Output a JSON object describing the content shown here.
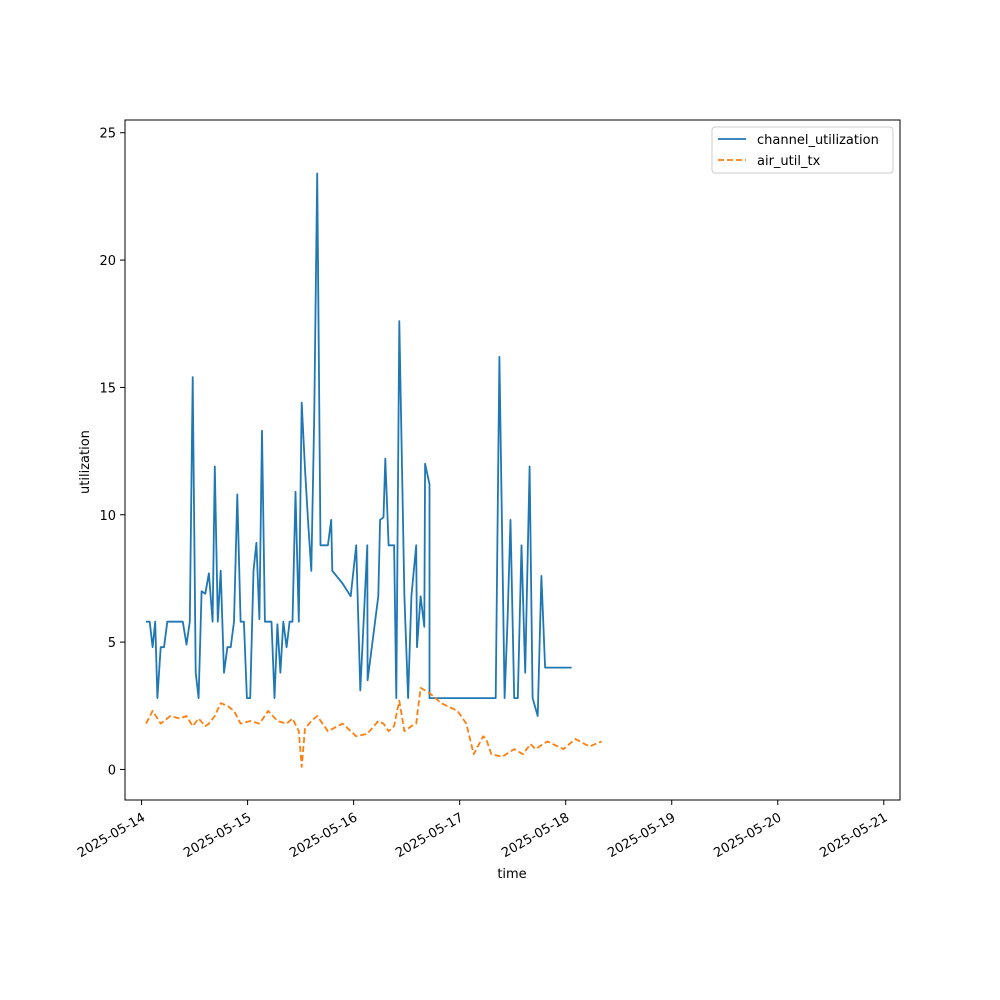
{
  "chart_data": {
    "type": "line",
    "title": "",
    "xlabel": "time",
    "ylabel": "utilization",
    "x_axis_kind": "datetime",
    "xlim": [
      "2025-05-13 20:15",
      "2025-05-21 03:40"
    ],
    "ylim": [
      -1.2,
      25.5
    ],
    "x_tick_labels": [
      "2025-05-14",
      "2025-05-15",
      "2025-05-16",
      "2025-05-17",
      "2025-05-18",
      "2025-05-19",
      "2025-05-20",
      "2025-05-21"
    ],
    "y_ticks": [
      0,
      5,
      10,
      15,
      20,
      25
    ],
    "grid": false,
    "legend_position": "top-right",
    "series": [
      {
        "name": "channel_utilization",
        "color": "#1f77b4",
        "line_style": "solid",
        "points": [
          [
            "2025-05-14 01:00",
            5.8
          ],
          [
            "2025-05-14 01:50",
            5.8
          ],
          [
            "2025-05-14 02:30",
            4.8
          ],
          [
            "2025-05-14 03:05",
            5.8
          ],
          [
            "2025-05-14 03:35",
            2.8
          ],
          [
            "2025-05-14 04:20",
            4.8
          ],
          [
            "2025-05-14 05:05",
            4.8
          ],
          [
            "2025-05-14 05:50",
            5.8
          ],
          [
            "2025-05-14 07:10",
            5.8
          ],
          [
            "2025-05-14 09:20",
            5.8
          ],
          [
            "2025-05-14 10:10",
            4.9
          ],
          [
            "2025-05-14 10:55",
            5.8
          ],
          [
            "2025-05-14 11:35",
            15.4
          ],
          [
            "2025-05-14 12:15",
            3.8
          ],
          [
            "2025-05-14 12:55",
            2.8
          ],
          [
            "2025-05-14 13:35",
            7.0
          ],
          [
            "2025-05-14 14:25",
            6.9
          ],
          [
            "2025-05-14 15:15",
            7.7
          ],
          [
            "2025-05-14 16:05",
            5.8
          ],
          [
            "2025-05-14 16:35",
            11.9
          ],
          [
            "2025-05-14 17:15",
            5.8
          ],
          [
            "2025-05-14 17:55",
            7.8
          ],
          [
            "2025-05-14 18:40",
            3.8
          ],
          [
            "2025-05-14 19:25",
            4.8
          ],
          [
            "2025-05-14 20:10",
            4.8
          ],
          [
            "2025-05-14 20:55",
            5.8
          ],
          [
            "2025-05-14 21:40",
            10.8
          ],
          [
            "2025-05-14 22:25",
            5.8
          ],
          [
            "2025-05-14 23:10",
            5.8
          ],
          [
            "2025-05-14 23:50",
            2.8
          ],
          [
            "2025-05-15 00:35",
            2.8
          ],
          [
            "2025-05-15 01:20",
            7.8
          ],
          [
            "2025-05-15 02:00",
            8.9
          ],
          [
            "2025-05-15 02:40",
            5.9
          ],
          [
            "2025-05-15 03:15",
            13.3
          ],
          [
            "2025-05-15 03:55",
            5.8
          ],
          [
            "2025-05-15 04:40",
            5.8
          ],
          [
            "2025-05-15 05:25",
            5.8
          ],
          [
            "2025-05-15 06:05",
            2.8
          ],
          [
            "2025-05-15 06:45",
            5.7
          ],
          [
            "2025-05-15 07:25",
            3.8
          ],
          [
            "2025-05-15 08:05",
            5.8
          ],
          [
            "2025-05-15 08:50",
            4.8
          ],
          [
            "2025-05-15 09:30",
            5.8
          ],
          [
            "2025-05-15 10:10",
            5.8
          ],
          [
            "2025-05-15 10:50",
            10.9
          ],
          [
            "2025-05-15 11:35",
            5.8
          ],
          [
            "2025-05-15 12:15",
            14.4
          ],
          [
            "2025-05-15 13:00",
            11.8
          ],
          [
            "2025-05-15 13:40",
            9.8
          ],
          [
            "2025-05-15 14:25",
            7.8
          ],
          [
            "2025-05-15 15:05",
            13.8
          ],
          [
            "2025-05-15 15:45",
            23.4
          ],
          [
            "2025-05-15 16:30",
            8.8
          ],
          [
            "2025-05-15 18:10",
            8.8
          ],
          [
            "2025-05-15 18:55",
            9.8
          ],
          [
            "2025-05-15 21:30",
            7.3
          ],
          [
            "2025-05-15 23:20",
            6.8
          ],
          [
            "2025-05-16 00:35",
            8.8
          ],
          [
            "2025-05-16 03:05",
            8.8
          ],
          [
            "2025-05-16 05:35",
            6.8
          ],
          [
            "2025-05-16 06:45",
            9.9
          ],
          [
            "2025-05-16 07:55",
            8.8
          ],
          [
            "2025-05-16 09:10",
            8.8
          ],
          [
            "2025-05-16 10:20",
            17.6
          ],
          [
            "2025-05-16 11:30",
            6.8
          ],
          [
            "2025-05-16 13:05",
            6.8
          ],
          [
            "2025-05-16 14:10",
            8.8
          ],
          [
            "2025-05-16 15:10",
            6.8
          ],
          [
            "2025-05-16 16:10",
            12.0
          ],
          [
            "2025-05-16 17:10",
            11.2
          ],
          [
            "2025-05-15 19:10",
            7.8
          ],
          [
            "2025-05-16 01:30",
            3.1
          ],
          [
            "2025-05-16 03:10",
            3.5
          ],
          [
            "2025-05-16 06:00",
            9.8
          ],
          [
            "2025-05-16 07:10",
            12.2
          ],
          [
            "2025-05-16 09:40",
            2.8
          ],
          [
            "2025-05-16 12:20",
            2.8
          ],
          [
            "2025-05-16 14:20",
            4.8
          ],
          [
            "2025-05-16 16:00",
            5.6
          ],
          [
            "2025-05-16 17:10",
            2.8
          ],
          [
            "2025-05-16 19:50",
            2.8
          ],
          [
            "2025-05-16 23:30",
            2.8
          ],
          [
            "2025-05-17 02:10",
            2.8
          ],
          [
            "2025-05-17 05:20",
            2.8
          ],
          [
            "2025-05-17 08:10",
            2.8
          ],
          [
            "2025-05-17 09:00",
            16.2
          ],
          [
            "2025-05-17 10:10",
            2.8
          ],
          [
            "2025-05-17 10:50",
            5.8
          ],
          [
            "2025-05-17 11:30",
            9.8
          ],
          [
            "2025-05-17 12:20",
            2.8
          ],
          [
            "2025-05-17 13:10",
            2.8
          ],
          [
            "2025-05-17 14:00",
            8.8
          ],
          [
            "2025-05-17 14:50",
            3.8
          ],
          [
            "2025-05-17 15:50",
            11.9
          ],
          [
            "2025-05-17 16:30",
            2.8
          ],
          [
            "2025-05-17 17:40",
            2.1
          ],
          [
            "2025-05-17 18:30",
            7.6
          ],
          [
            "2025-05-17 19:20",
            4.0
          ],
          [
            "2025-05-17 21:20",
            4.0
          ],
          [
            "2025-05-17 23:40",
            4.0
          ],
          [
            "2025-05-18 01:20",
            4.0
          ]
        ]
      },
      {
        "name": "air_util_tx",
        "color": "#ff7f0e",
        "line_style": "dashed",
        "points": [
          [
            "2025-05-14 01:00",
            1.8
          ],
          [
            "2025-05-14 02:30",
            2.3
          ],
          [
            "2025-05-14 04:20",
            1.8
          ],
          [
            "2025-05-14 06:30",
            2.1
          ],
          [
            "2025-05-14 08:40",
            2.0
          ],
          [
            "2025-05-14 10:10",
            2.1
          ],
          [
            "2025-05-14 11:35",
            1.7
          ],
          [
            "2025-05-14 12:55",
            2.0
          ],
          [
            "2025-05-14 14:25",
            1.7
          ],
          [
            "2025-05-14 15:15",
            1.8
          ],
          [
            "2025-05-14 16:35",
            2.1
          ],
          [
            "2025-05-14 17:55",
            2.6
          ],
          [
            "2025-05-14 19:25",
            2.5
          ],
          [
            "2025-05-14 20:55",
            2.3
          ],
          [
            "2025-05-14 22:25",
            1.8
          ],
          [
            "2025-05-15 00:35",
            1.9
          ],
          [
            "2025-05-15 02:40",
            1.8
          ],
          [
            "2025-05-15 04:40",
            2.3
          ],
          [
            "2025-05-15 06:45",
            1.9
          ],
          [
            "2025-05-15 08:50",
            1.8
          ],
          [
            "2025-05-15 10:10",
            2.0
          ],
          [
            "2025-05-15 11:35",
            1.5
          ],
          [
            "2025-05-15 12:15",
            0.1
          ],
          [
            "2025-05-15 13:00",
            1.6
          ],
          [
            "2025-05-15 14:25",
            1.9
          ],
          [
            "2025-05-15 15:45",
            2.1
          ],
          [
            "2025-05-15 18:10",
            1.5
          ],
          [
            "2025-05-15 21:30",
            1.8
          ],
          [
            "2025-05-16 00:35",
            1.3
          ],
          [
            "2025-05-16 03:05",
            1.4
          ],
          [
            "2025-05-16 05:35",
            1.9
          ],
          [
            "2025-05-16 06:45",
            1.8
          ],
          [
            "2025-05-16 07:55",
            1.5
          ],
          [
            "2025-05-16 09:10",
            1.7
          ],
          [
            "2025-05-16 10:20",
            2.7
          ],
          [
            "2025-05-16 11:30",
            1.5
          ],
          [
            "2025-05-16 13:05",
            1.7
          ],
          [
            "2025-05-16 14:10",
            1.8
          ],
          [
            "2025-05-16 15:10",
            3.2
          ],
          [
            "2025-05-16 17:10",
            3.0
          ],
          [
            "2025-05-16 19:50",
            2.6
          ],
          [
            "2025-05-16 23:30",
            2.3
          ],
          [
            "2025-05-17 01:30",
            1.8
          ],
          [
            "2025-05-17 03:10",
            0.6
          ],
          [
            "2025-05-17 05:20",
            1.3
          ],
          [
            "2025-05-17 06:00",
            1.2
          ],
          [
            "2025-05-17 07:10",
            0.6
          ],
          [
            "2025-05-17 09:40",
            0.5
          ],
          [
            "2025-05-17 12:20",
            0.8
          ],
          [
            "2025-05-17 14:20",
            0.6
          ],
          [
            "2025-05-17 16:00",
            1.0
          ],
          [
            "2025-05-17 17:10",
            0.8
          ],
          [
            "2025-05-17 19:50",
            1.1
          ],
          [
            "2025-05-17 23:30",
            0.8
          ],
          [
            "2025-05-18 02:10",
            1.2
          ],
          [
            "2025-05-18 05:20",
            0.9
          ],
          [
            "2025-05-18 08:10",
            1.1
          ]
        ]
      }
    ]
  }
}
